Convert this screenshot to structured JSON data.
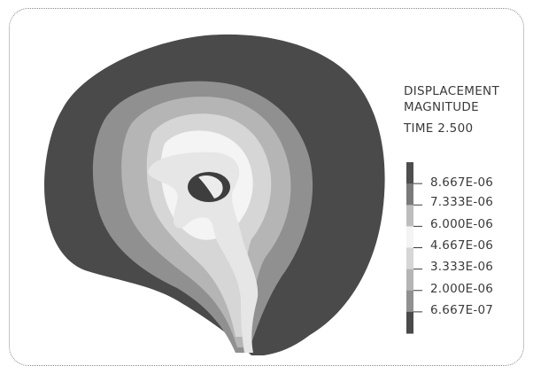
{
  "figure": {
    "title_lines": [
      "DISPLACEMENT",
      "MAGNITUDE",
      "TIME 2.500"
    ]
  },
  "legend": {
    "labels": [
      "8.667E-06",
      "7.333E-06",
      "6.000E-06",
      "4.667E-06",
      "3.333E-06",
      "2.000E-06",
      "6.667E-07"
    ],
    "band_colors": [
      "#4e4e4e",
      "#7a7a7a",
      "#bdbdbd",
      "#f4f4f4",
      "#d6d6d6",
      "#b5b5b5",
      "#909090",
      "#4a4a4a"
    ]
  },
  "contour_colors": {
    "outer": "#4a4a4a",
    "ring1": "#909090",
    "ring2": "#b5b5b5",
    "ring3": "#d6d6d6",
    "core": "#f4f4f4",
    "ventricle": "#e6e6e6",
    "hole": "#3e3e3e",
    "hole_inner": "#ececec"
  }
}
